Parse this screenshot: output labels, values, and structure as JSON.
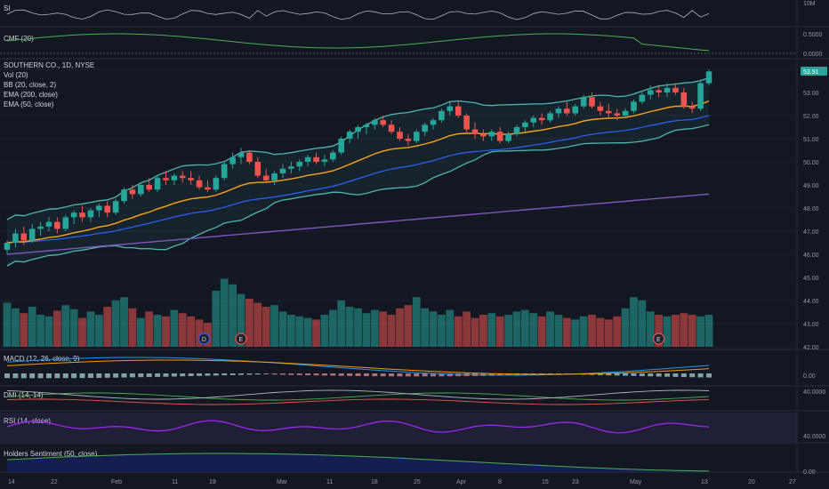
{
  "main": {
    "title": "SOUTHERN CO., 1D, NYSE",
    "legend": [
      "Vol (20)",
      "BB (20, close, 2)",
      "EMA (200, close)",
      "EMA (50, close)"
    ],
    "last_price": "53.91",
    "price_ticks": [
      "53.00",
      "52.00",
      "51.00",
      "50.00",
      "49.00",
      "48.00",
      "47.00",
      "46.00",
      "45.00",
      "44.00",
      "43.00",
      "42.00"
    ],
    "badges": [
      "D",
      "E",
      "E"
    ]
  },
  "panels": {
    "si": {
      "label": "SI",
      "tick": "10M"
    },
    "cmf": {
      "label": "CMF (20)",
      "ticks": [
        "0.5000",
        "0.0000"
      ]
    },
    "macd": {
      "label": "MACD (12, 26, close, 9)",
      "tick": "0.00"
    },
    "dmi": {
      "label": "DMI (14, 14)",
      "tick": "40.0000"
    },
    "rsi": {
      "label": "RSI (14, close)",
      "tick": "40.0000"
    },
    "holders": {
      "label": "Holders Sentiment (50, close)",
      "tick": "0.00"
    }
  },
  "x_ticks": [
    "14",
    "22",
    "Feb",
    "11",
    "19",
    "Mar",
    "11",
    "18",
    "25",
    "Apr",
    "8",
    "15",
    "23",
    "May",
    "13",
    "20",
    "27"
  ],
  "colors": {
    "background": "#131722",
    "up": "#26a69a",
    "down": "#ef5350",
    "bb": "#4db6ac",
    "ema50": "#f7a21b",
    "ema200": "#7e57c2",
    "blue_ma": "#2962ff",
    "macd": "#2196f3",
    "signal": "#ff9800",
    "rsi": "#9c27f0",
    "price_tag": "#26a69a"
  },
  "chart_data": {
    "type": "candlestick",
    "ylim": [
      42,
      54
    ],
    "ohlc": [
      [
        46.2,
        46.6,
        46.0,
        46.5
      ],
      [
        46.5,
        47.1,
        46.3,
        46.9
      ],
      [
        46.9,
        47.2,
        46.4,
        46.6
      ],
      [
        46.6,
        47.3,
        46.5,
        47.1
      ],
      [
        47.1,
        47.4,
        46.8,
        47.2
      ],
      [
        47.2,
        47.6,
        47.0,
        47.4
      ],
      [
        47.4,
        47.6,
        46.9,
        47.1
      ],
      [
        47.1,
        47.7,
        47.0,
        47.6
      ],
      [
        47.6,
        47.9,
        47.3,
        47.8
      ],
      [
        47.8,
        48.1,
        47.4,
        47.6
      ],
      [
        47.6,
        48.0,
        47.4,
        47.9
      ],
      [
        47.9,
        48.2,
        47.6,
        48.1
      ],
      [
        48.1,
        48.3,
        47.6,
        47.8
      ],
      [
        47.8,
        48.4,
        47.7,
        48.3
      ],
      [
        48.3,
        48.9,
        48.2,
        48.8
      ],
      [
        48.8,
        49.0,
        48.4,
        48.6
      ],
      [
        48.6,
        49.1,
        48.5,
        49.0
      ],
      [
        49.0,
        49.3,
        48.7,
        48.8
      ],
      [
        48.8,
        49.4,
        48.7,
        49.3
      ],
      [
        49.3,
        49.6,
        49.0,
        49.2
      ],
      [
        49.2,
        49.5,
        49.0,
        49.4
      ],
      [
        49.4,
        49.6,
        49.1,
        49.3
      ],
      [
        49.3,
        49.6,
        49.0,
        49.2
      ],
      [
        49.2,
        49.4,
        48.8,
        48.9
      ],
      [
        48.9,
        49.2,
        48.7,
        48.8
      ],
      [
        48.8,
        49.4,
        48.7,
        49.3
      ],
      [
        49.3,
        50.0,
        49.2,
        49.9
      ],
      [
        49.9,
        50.4,
        49.7,
        50.2
      ],
      [
        50.2,
        50.6,
        49.9,
        50.4
      ],
      [
        50.4,
        50.5,
        49.9,
        50.0
      ],
      [
        50.0,
        50.2,
        49.3,
        49.4
      ],
      [
        49.4,
        49.7,
        49.1,
        49.2
      ],
      [
        49.2,
        49.6,
        49.0,
        49.5
      ],
      [
        49.5,
        49.9,
        49.3,
        49.7
      ],
      [
        49.7,
        50.0,
        49.5,
        49.8
      ],
      [
        49.8,
        50.1,
        49.6,
        50.0
      ],
      [
        50.0,
        50.3,
        49.8,
        50.2
      ],
      [
        50.2,
        50.4,
        49.9,
        50.0
      ],
      [
        50.0,
        50.3,
        49.8,
        50.1
      ],
      [
        50.1,
        50.5,
        50.0,
        50.4
      ],
      [
        50.4,
        51.1,
        50.3,
        51.0
      ],
      [
        51.0,
        51.4,
        50.8,
        51.3
      ],
      [
        51.3,
        51.6,
        51.0,
        51.5
      ],
      [
        51.5,
        51.7,
        51.2,
        51.6
      ],
      [
        51.6,
        51.9,
        51.4,
        51.8
      ],
      [
        51.8,
        52.0,
        51.5,
        51.6
      ],
      [
        51.6,
        51.8,
        51.2,
        51.3
      ],
      [
        51.3,
        51.5,
        50.9,
        51.0
      ],
      [
        51.0,
        51.2,
        50.7,
        50.9
      ],
      [
        50.9,
        51.4,
        50.8,
        51.3
      ],
      [
        51.3,
        51.7,
        51.1,
        51.6
      ],
      [
        51.6,
        51.9,
        51.4,
        51.8
      ],
      [
        51.8,
        52.3,
        51.7,
        52.2
      ],
      [
        52.2,
        52.6,
        52.0,
        52.4
      ],
      [
        52.4,
        52.6,
        51.9,
        52.0
      ],
      [
        52.0,
        52.1,
        51.2,
        51.4
      ],
      [
        51.4,
        51.7,
        51.0,
        51.2
      ],
      [
        51.2,
        51.4,
        50.9,
        51.1
      ],
      [
        51.1,
        51.4,
        50.9,
        51.3
      ],
      [
        51.3,
        51.5,
        50.8,
        50.9
      ],
      [
        50.9,
        51.3,
        50.8,
        51.2
      ],
      [
        51.2,
        51.6,
        51.1,
        51.5
      ],
      [
        51.5,
        51.8,
        51.3,
        51.7
      ],
      [
        51.7,
        52.0,
        51.5,
        51.9
      ],
      [
        51.9,
        52.1,
        51.6,
        51.8
      ],
      [
        51.8,
        52.2,
        51.7,
        52.1
      ],
      [
        52.1,
        52.4,
        51.9,
        52.3
      ],
      [
        52.3,
        52.6,
        52.0,
        52.1
      ],
      [
        52.1,
        52.5,
        52.0,
        52.4
      ],
      [
        52.4,
        52.9,
        52.3,
        52.8
      ],
      [
        52.8,
        53.0,
        52.3,
        52.4
      ],
      [
        52.4,
        52.6,
        52.0,
        52.2
      ],
      [
        52.2,
        52.5,
        51.9,
        52.1
      ],
      [
        52.1,
        52.3,
        51.8,
        52.0
      ],
      [
        52.0,
        52.3,
        51.9,
        52.2
      ],
      [
        52.2,
        52.7,
        52.1,
        52.6
      ],
      [
        52.6,
        53.0,
        52.5,
        52.9
      ],
      [
        52.9,
        53.3,
        52.7,
        53.1
      ],
      [
        53.1,
        53.3,
        52.8,
        53.0
      ],
      [
        53.0,
        53.4,
        52.8,
        53.2
      ],
      [
        53.2,
        53.4,
        52.9,
        53.0
      ],
      [
        53.0,
        53.2,
        52.3,
        52.4
      ],
      [
        52.4,
        52.6,
        52.1,
        52.3
      ],
      [
        52.3,
        53.5,
        52.2,
        53.4
      ],
      [
        53.4,
        54.0,
        53.3,
        53.91
      ]
    ],
    "volume": [
      55,
      48,
      42,
      50,
      40,
      38,
      45,
      52,
      47,
      36,
      44,
      40,
      50,
      58,
      62,
      48,
      36,
      44,
      40,
      38,
      46,
      42,
      38,
      34,
      30,
      70,
      85,
      78,
      66,
      60,
      55,
      50,
      52,
      44,
      40,
      38,
      36,
      34,
      40,
      46,
      58,
      50,
      48,
      42,
      46,
      44,
      40,
      48,
      52,
      62,
      48,
      44,
      40,
      46,
      38,
      44,
      36,
      40,
      42,
      38,
      40,
      44,
      46,
      42,
      38,
      44,
      40,
      36,
      34,
      38,
      40,
      36,
      34,
      38,
      48,
      62,
      58,
      44,
      40,
      38,
      40,
      42,
      40,
      38,
      40
    ],
    "x_ticks": [
      "14",
      "22",
      "Feb",
      "11",
      "19",
      "Mar",
      "11",
      "18",
      "25",
      "Apr",
      "8",
      "15",
      "23",
      "May",
      "13",
      "20",
      "27"
    ]
  }
}
